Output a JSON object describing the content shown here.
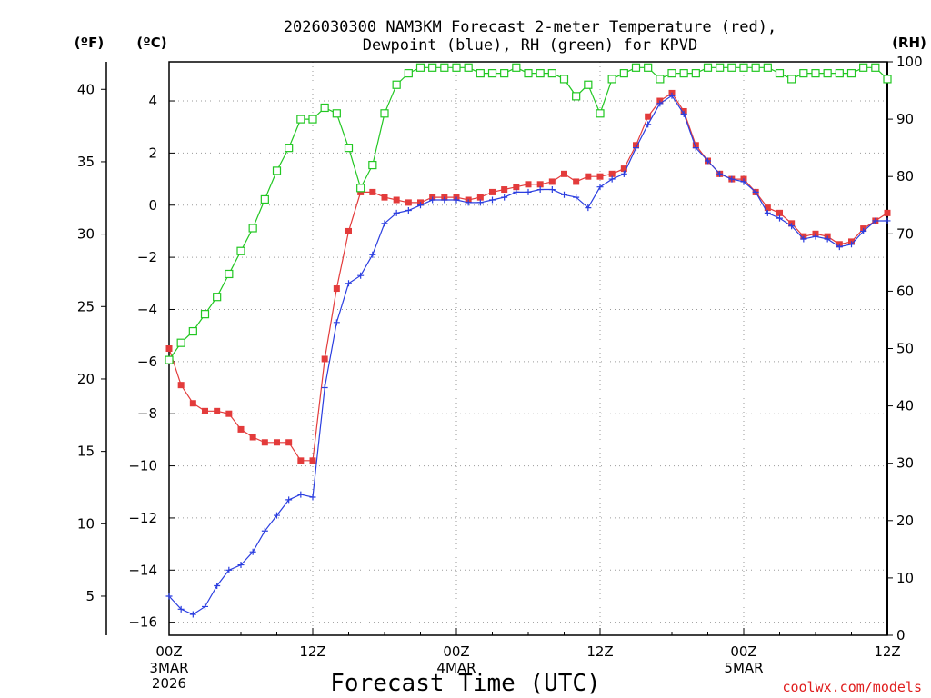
{
  "chart_data": {
    "type": "line",
    "title_line1": "2026030300 NAM3KM Forecast 2-meter Temperature (red),",
    "title_line2": "Dewpoint (blue), RH (green) for KPVD",
    "xlabel": "Forecast Time (UTC)",
    "credit": "coolwx.com/models",
    "units": {
      "fahrenheit": "(ºF)",
      "celsius": "(ºC)",
      "rh": "(RH)"
    },
    "x_hours_range": [
      0,
      60
    ],
    "celsius_range": [
      -16.5,
      5.5
    ],
    "rh_range": [
      0,
      100
    ],
    "x_ticks": [
      {
        "hour": 0,
        "label": "00Z",
        "sub1": "3MAR",
        "sub2": "2026"
      },
      {
        "hour": 12,
        "label": "12Z",
        "sub1": "",
        "sub2": ""
      },
      {
        "hour": 24,
        "label": "00Z",
        "sub1": "4MAR",
        "sub2": ""
      },
      {
        "hour": 36,
        "label": "12Z",
        "sub1": "",
        "sub2": ""
      },
      {
        "hour": 48,
        "label": "00Z",
        "sub1": "5MAR",
        "sub2": ""
      },
      {
        "hour": 60,
        "label": "12Z",
        "sub1": "",
        "sub2": ""
      }
    ],
    "celsius_ticks": [
      "-16",
      "-14",
      "-12",
      "-10",
      "-8",
      "-6",
      "-4",
      "-2",
      "0",
      "2",
      "4"
    ],
    "fahrenheit_ticks": [
      "5",
      "10",
      "15",
      "20",
      "25",
      "30",
      "35",
      "40"
    ],
    "rh_ticks": [
      "0",
      "10",
      "20",
      "30",
      "40",
      "50",
      "60",
      "70",
      "80",
      "90",
      "100"
    ],
    "hours": [
      0,
      1,
      2,
      3,
      4,
      5,
      6,
      7,
      8,
      9,
      10,
      11,
      12,
      13,
      14,
      15,
      16,
      17,
      18,
      19,
      20,
      21,
      22,
      23,
      24,
      25,
      26,
      27,
      28,
      29,
      30,
      31,
      32,
      33,
      34,
      35,
      36,
      37,
      38,
      39,
      40,
      41,
      42,
      43,
      44,
      45,
      46,
      47,
      48,
      49,
      50,
      51,
      52,
      53,
      54,
      55,
      56,
      57,
      58,
      59,
      60
    ],
    "series": [
      {
        "name": "2-meter Temperature",
        "color": "#e33b3b",
        "marker": "filled-square",
        "values": [
          -5.5,
          -6.9,
          -7.6,
          -7.9,
          -7.9,
          -8.0,
          -8.6,
          -8.9,
          -9.1,
          -9.1,
          -9.1,
          -9.8,
          -9.8,
          -5.9,
          -3.2,
          -1.0,
          0.5,
          0.5,
          0.3,
          0.2,
          0.1,
          0.1,
          0.3,
          0.3,
          0.3,
          0.2,
          0.3,
          0.5,
          0.6,
          0.7,
          0.8,
          0.8,
          0.9,
          1.2,
          0.9,
          1.1,
          1.1,
          1.2,
          1.4,
          2.3,
          3.4,
          4.0,
          4.3,
          3.6,
          2.3,
          1.7,
          1.2,
          1.0,
          1.0,
          0.5,
          -0.1,
          -0.3,
          -0.7,
          -1.2,
          -1.1,
          -1.2,
          -1.5,
          -1.4,
          -0.9,
          -0.6,
          -0.3
        ]
      },
      {
        "name": "Dewpoint",
        "color": "#2b3ee0",
        "marker": "plus",
        "values": [
          -15.0,
          -15.5,
          -15.7,
          -15.4,
          -14.6,
          -14.0,
          -13.8,
          -13.3,
          -12.5,
          -11.9,
          -11.3,
          -11.1,
          -11.2,
          -7.0,
          -4.5,
          -3.0,
          -2.7,
          -1.9,
          -0.7,
          -0.3,
          -0.2,
          0.0,
          0.2,
          0.2,
          0.2,
          0.1,
          0.1,
          0.2,
          0.3,
          0.5,
          0.5,
          0.6,
          0.6,
          0.4,
          0.3,
          -0.1,
          0.7,
          1.0,
          1.2,
          2.2,
          3.1,
          3.9,
          4.2,
          3.5,
          2.2,
          1.7,
          1.2,
          1.0,
          0.9,
          0.5,
          -0.3,
          -0.5,
          -0.8,
          -1.3,
          -1.2,
          -1.3,
          -1.6,
          -1.5,
          -1.0,
          -0.6,
          -0.6
        ]
      },
      {
        "name": "RH",
        "color": "#22c722",
        "marker": "open-square",
        "axis": "rh",
        "values": [
          48,
          51,
          53,
          56,
          59,
          63,
          67,
          71,
          76,
          81,
          85,
          90,
          90,
          92,
          91,
          85,
          78,
          82,
          91,
          96,
          98,
          99,
          99,
          99,
          99,
          99,
          98,
          98,
          98,
          99,
          98,
          98,
          98,
          97,
          94,
          96,
          91,
          97,
          98,
          99,
          99,
          97,
          98,
          98,
          98,
          99,
          99,
          99,
          99,
          99,
          99,
          98,
          97,
          98,
          98,
          98,
          98,
          98,
          99,
          99,
          97
        ]
      }
    ]
  }
}
